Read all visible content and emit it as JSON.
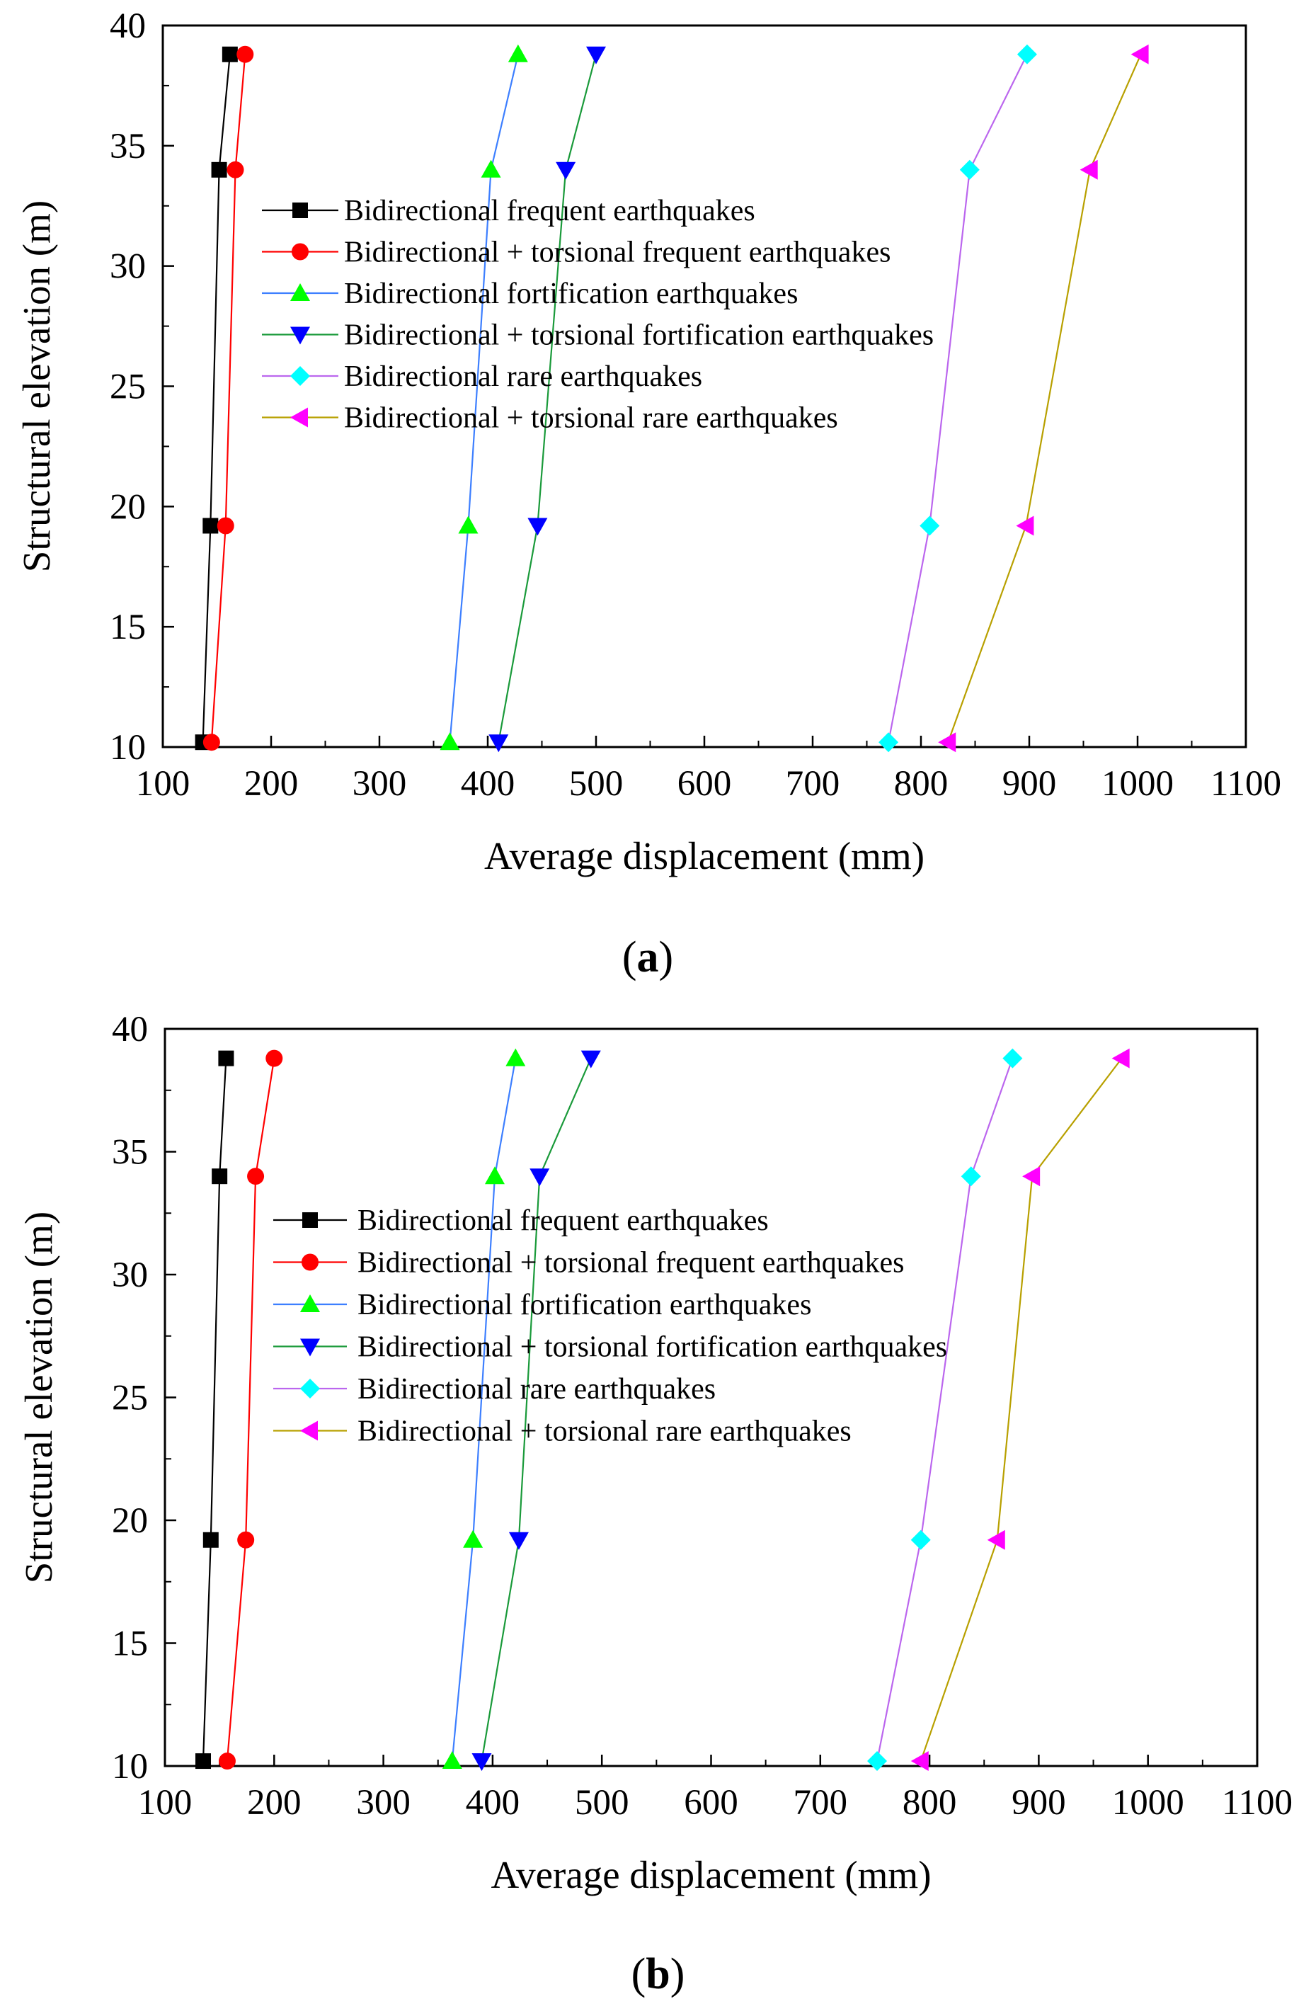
{
  "chart_data": [
    {
      "type": "line",
      "panel_label": "a",
      "xlabel": "Average displacement (mm)",
      "ylabel": "Structural elevation (m)",
      "xlim": [
        100,
        1100
      ],
      "ylim": [
        10,
        40
      ],
      "xticks": [
        100,
        200,
        300,
        400,
        500,
        600,
        700,
        800,
        900,
        1000,
        1100
      ],
      "yticks": [
        10,
        15,
        20,
        25,
        30,
        35,
        40
      ],
      "legend_position": "center",
      "series": [
        {
          "name": "Bidirectional frequent earthquakes",
          "line_color": "#000000",
          "marker_color": "#000000",
          "marker": "square",
          "points": [
            [
              137,
              10.2
            ],
            [
              144,
              19.2
            ],
            [
              152,
              34.0
            ],
            [
              162,
              38.8
            ]
          ]
        },
        {
          "name": "Bidirectional + torsional frequent earthquakes",
          "line_color": "#ff0000",
          "marker_color": "#ff0000",
          "marker": "circle",
          "points": [
            [
              145,
              10.2
            ],
            [
              158,
              19.2
            ],
            [
              167,
              34.0
            ],
            [
              176,
              38.8
            ]
          ]
        },
        {
          "name": "Bidirectional fortification earthquakes",
          "line_color": "#3d7fff",
          "marker_color": "#00ff00",
          "marker": "triangle-up",
          "points": [
            [
              365,
              10.2
            ],
            [
              382,
              19.2
            ],
            [
              403,
              34.0
            ],
            [
              428,
              38.8
            ]
          ]
        },
        {
          "name": "Bidirectional + torsional fortification earthquakes",
          "line_color": "#1a9a3a",
          "marker_color": "#0000ff",
          "marker": "triangle-down",
          "points": [
            [
              410,
              10.2
            ],
            [
              446,
              19.2
            ],
            [
              472,
              34.0
            ],
            [
              500,
              38.8
            ]
          ]
        },
        {
          "name": "Bidirectional rare earthquakes",
          "line_color": "#bb66ee",
          "marker_color": "#00ffff",
          "marker": "diamond",
          "points": [
            [
              770,
              10.2
            ],
            [
              808,
              19.2
            ],
            [
              845,
              34.0
            ],
            [
              898,
              38.8
            ]
          ]
        },
        {
          "name": "Bidirectional + torsional rare earthquakes",
          "line_color": "#b8a000",
          "marker_color": "#ff00ff",
          "marker": "triangle-left",
          "points": [
            [
              825,
              10.2
            ],
            [
              897,
              19.2
            ],
            [
              956,
              34.0
            ],
            [
              1003,
              38.8
            ]
          ]
        }
      ]
    },
    {
      "type": "line",
      "panel_label": "b",
      "xlabel": "Average displacement (mm)",
      "ylabel": "Structural elevation (m)",
      "xlim": [
        100,
        1100
      ],
      "ylim": [
        10,
        40
      ],
      "xticks": [
        100,
        200,
        300,
        400,
        500,
        600,
        700,
        800,
        900,
        1000,
        1100
      ],
      "yticks": [
        10,
        15,
        20,
        25,
        30,
        35,
        40
      ],
      "legend_position": "center",
      "series": [
        {
          "name": "Bidirectional frequent earthquakes",
          "line_color": "#000000",
          "marker_color": "#000000",
          "marker": "square",
          "points": [
            [
              135,
              10.2
            ],
            [
              142,
              19.2
            ],
            [
              150,
              34.0
            ],
            [
              156,
              38.8
            ]
          ]
        },
        {
          "name": "Bidirectional + torsional frequent earthquakes",
          "line_color": "#ff0000",
          "marker_color": "#ff0000",
          "marker": "circle",
          "points": [
            [
              157,
              10.2
            ],
            [
              174,
              19.2
            ],
            [
              183,
              34.0
            ],
            [
              200,
              38.8
            ]
          ]
        },
        {
          "name": "Bidirectional fortification earthquakes",
          "line_color": "#3d7fff",
          "marker_color": "#00ff00",
          "marker": "triangle-up",
          "points": [
            [
              363,
              10.2
            ],
            [
              382,
              19.2
            ],
            [
              402,
              34.0
            ],
            [
              421,
              38.8
            ]
          ]
        },
        {
          "name": "Bidirectional + torsional fortification earthquakes",
          "line_color": "#1a9a3a",
          "marker_color": "#0000ff",
          "marker": "triangle-down",
          "points": [
            [
              390,
              10.2
            ],
            [
              424,
              19.2
            ],
            [
              443,
              34.0
            ],
            [
              490,
              38.8
            ]
          ]
        },
        {
          "name": "Bidirectional rare earthquakes",
          "line_color": "#bb66ee",
          "marker_color": "#00ffff",
          "marker": "diamond",
          "points": [
            [
              752,
              10.2
            ],
            [
              792,
              19.2
            ],
            [
              838,
              34.0
            ],
            [
              876,
              38.8
            ]
          ]
        },
        {
          "name": "Bidirectional + torsional rare earthquakes",
          "line_color": "#b8a000",
          "marker_color": "#ff00ff",
          "marker": "triangle-left",
          "points": [
            [
              792,
              10.2
            ],
            [
              862,
              19.2
            ],
            [
              894,
              34.0
            ],
            [
              976,
              38.8
            ]
          ]
        }
      ]
    }
  ]
}
